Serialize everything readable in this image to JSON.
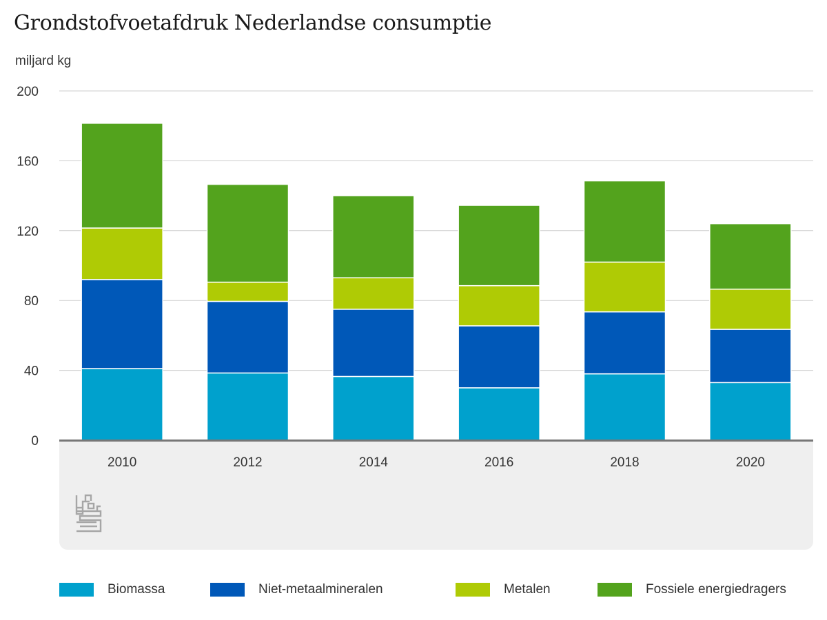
{
  "title": "Grondstofvoetafdruk Nederlandse consumptie",
  "unit_label": "miljard kg",
  "chart_data": {
    "type": "bar",
    "stacked": true,
    "title": "Grondstofvoetafdruk Nederlandse consumptie",
    "ylabel": "miljard kg",
    "xlabel": "",
    "ylim": [
      0,
      200
    ],
    "yticks": [
      0,
      40,
      80,
      120,
      160,
      200
    ],
    "grid": true,
    "legend_position": "bottom",
    "categories": [
      "2010",
      "2012",
      "2014",
      "2016",
      "2018",
      "2020"
    ],
    "series": [
      {
        "name": "Biomassa",
        "color": "#00a1cd",
        "values": [
          41,
          38.5,
          36.5,
          30,
          38,
          33
        ]
      },
      {
        "name": "Niet-metaalmineralen",
        "color": "#0058b8",
        "values": [
          51,
          41,
          38.5,
          35.5,
          35.5,
          30.5
        ]
      },
      {
        "name": "Metalen",
        "color": "#afcb05",
        "values": [
          29.5,
          11,
          18,
          23,
          28.5,
          23
        ]
      },
      {
        "name": "Fossiele energiedragers",
        "color": "#53a31d",
        "values": [
          60,
          56,
          47,
          46,
          46.5,
          37.5
        ]
      }
    ]
  },
  "colors": {
    "axis": "#777777",
    "grid": "#cccccc",
    "footer_bg": "#efefef",
    "logo": "#a6a6a6"
  },
  "logo_icon": "cbs-logo-icon"
}
